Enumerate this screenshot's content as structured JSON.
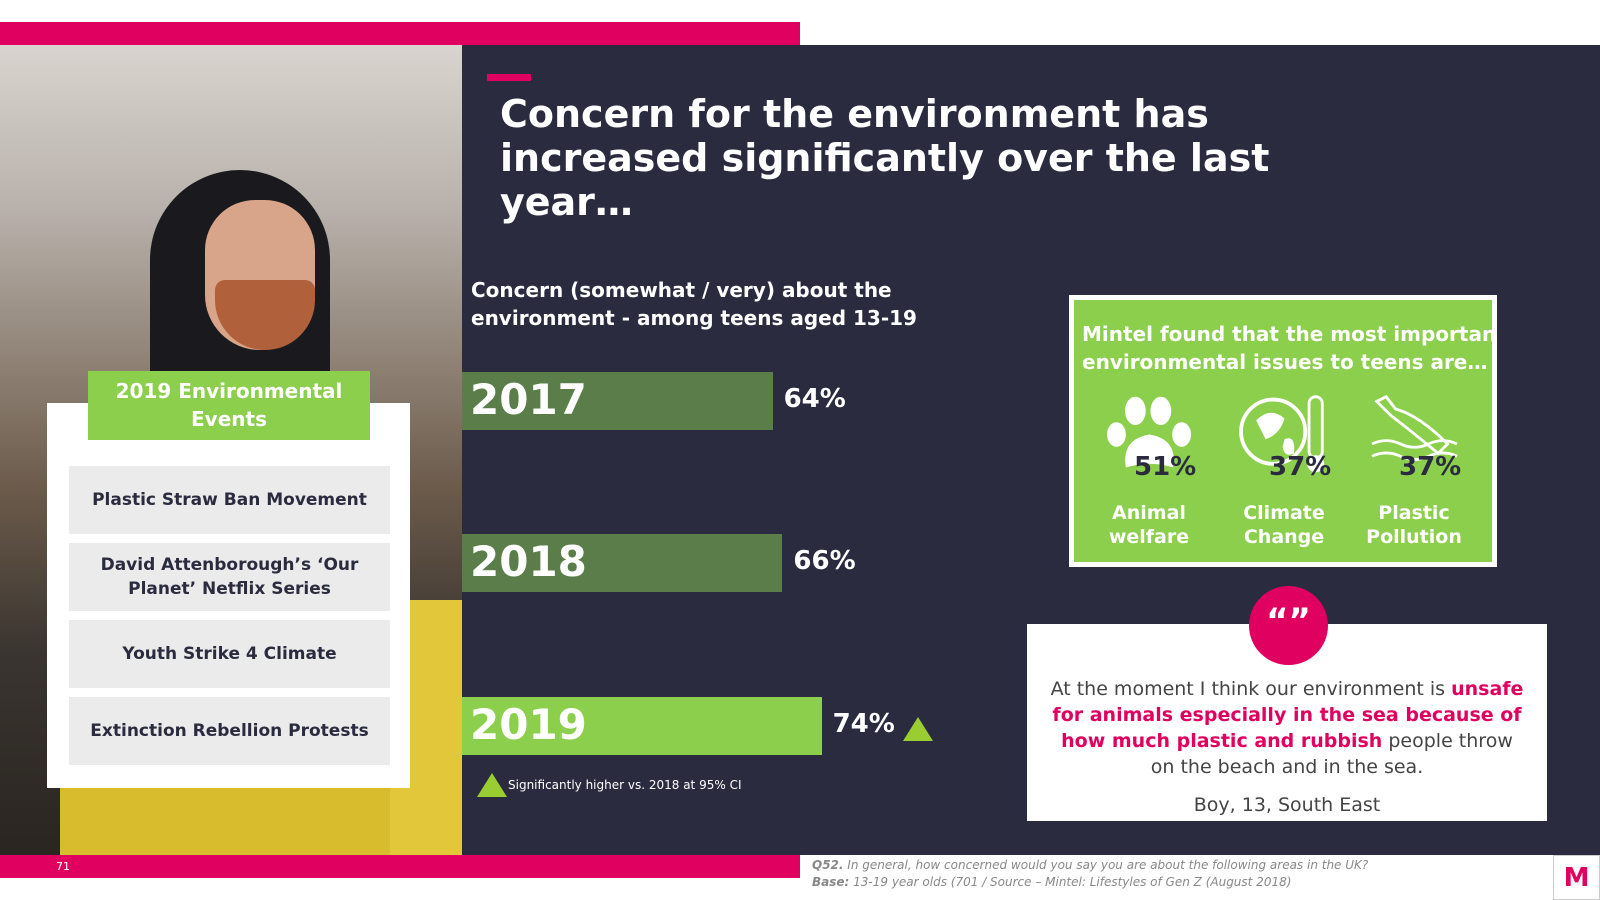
{
  "title": "Concern for the environment has increased significantly over the last year…",
  "chart_data": {
    "type": "bar",
    "title": "Concern (somewhat / very) about the environment - among teens aged 13-19",
    "categories": [
      "2017",
      "2018",
      "2019"
    ],
    "values": [
      64,
      66,
      74
    ],
    "labels": [
      "64%",
      "66%",
      "74%"
    ],
    "colors": [
      "#5a7d4a",
      "#5a7d4a",
      "#8ccf4d"
    ],
    "significant": [
      false,
      false,
      true
    ],
    "xlim": [
      0,
      100
    ]
  },
  "note": "Significantly higher vs. 2018 at 95% CI",
  "events": {
    "title": "2019 Environmental Events",
    "items": [
      "Plastic Straw Ban Movement",
      "David Attenborough’s ‘Our Planet’ Netflix Series",
      "Youth Strike 4 Climate",
      "Extinction Rebellion Protests"
    ]
  },
  "mintel": {
    "title_line1": "Mintel found that the most important",
    "title_line2": "environmental issues to teens are…",
    "issues": [
      {
        "icon": "paw-icon",
        "value": "51%",
        "label": "Animal welfare"
      },
      {
        "icon": "globe-thermometer-icon",
        "value": "37%",
        "label": "Climate Change"
      },
      {
        "icon": "bottle-water-icon",
        "value": "37%",
        "label": "Plastic Pollution"
      }
    ]
  },
  "quote": {
    "mark": "“”",
    "pre": "At the moment I think our environment is ",
    "highlight": "unsafe for animals especially in the sea because of how much plastic and rubbish",
    "post": " people throw on the beach and in the sea.",
    "attribution": "Boy, 13, South East"
  },
  "page_number": "71",
  "footer": {
    "q_label": "Q52.",
    "q_text": " In general, how concerned would you say you are about the following areas in the UK?",
    "base_label": "Base:",
    "base_text": " 13-19 year olds (701 / Source – Mintel: Lifestyles of Gen Z (August 2018)"
  },
  "logo": "M"
}
